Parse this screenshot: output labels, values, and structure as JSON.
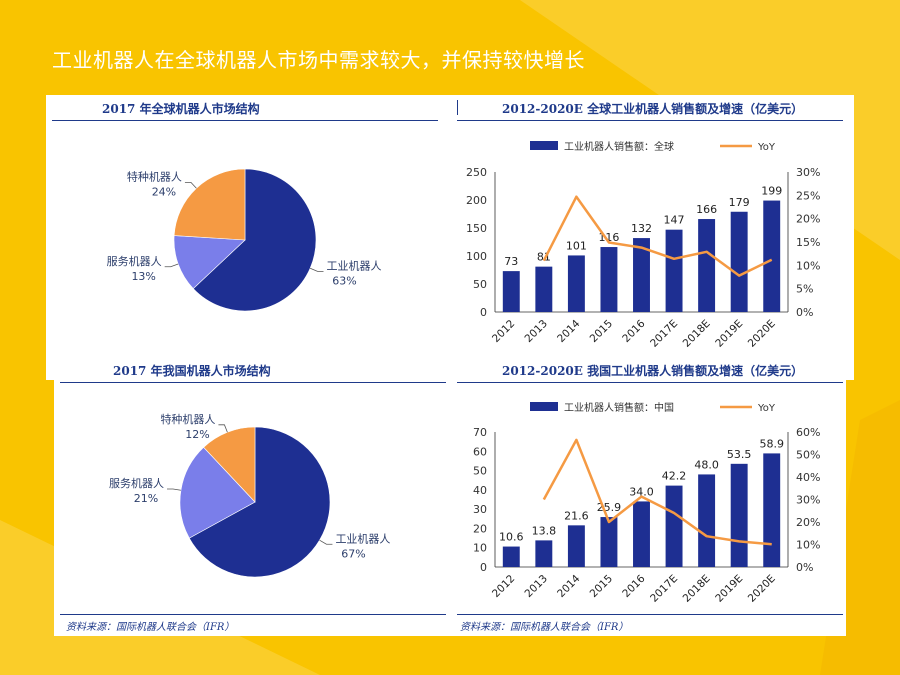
{
  "page": {
    "title": "工业机器人在全球机器人市场中需求较大，并保持较快增长",
    "source_left": "资料来源：国际机器人联合会（IFR）",
    "source_right": "资料来源：国际机器人联合会（IFR）"
  },
  "colors": {
    "background": "#F9C400",
    "navy": "#1E2F92",
    "periwinkle": "#7A7EEA",
    "orange": "#F59A43",
    "title_blue": "#1F3A8A"
  },
  "chart_data": [
    {
      "id": "global-structure",
      "type": "pie",
      "title": "2017 年全球机器人市场结构",
      "slices": [
        {
          "name": "工业机器人",
          "value": 63,
          "label": "63%",
          "color": "#1E2F92"
        },
        {
          "name": "服务机器人",
          "value": 13,
          "label": "13%",
          "color": "#7A7EEA"
        },
        {
          "name": "特种机器人",
          "value": 24,
          "label": "24%",
          "color": "#F59A43"
        }
      ]
    },
    {
      "id": "global-sales",
      "type": "bar",
      "title": "2012-2020E 全球工业机器人销售额及增速（亿美元）",
      "categories": [
        "2012",
        "2013",
        "2014",
        "2015",
        "2016",
        "2017E",
        "2018E",
        "2019E",
        "2020E"
      ],
      "series": [
        {
          "name": "工业机器人销售额：全球",
          "kind": "bar",
          "axis": "left",
          "values": [
            73,
            81,
            101,
            116,
            132,
            147,
            166,
            179,
            199
          ],
          "labels": [
            "73",
            "81",
            "101",
            "116",
            "132",
            "147",
            "166",
            "179",
            "199"
          ]
        },
        {
          "name": "YoY",
          "kind": "line",
          "axis": "right",
          "values": [
            null,
            11,
            24.7,
            14.9,
            13.8,
            11.4,
            12.9,
            7.8,
            11.2
          ]
        }
      ],
      "ylim": [
        0,
        250
      ],
      "yticks": [
        "0",
        "50",
        "100",
        "150",
        "200",
        "250"
      ],
      "y2lim": [
        0,
        30
      ],
      "y2ticks": [
        "0%",
        "5%",
        "10%",
        "15%",
        "20%",
        "25%",
        "30%"
      ],
      "legend": "top"
    },
    {
      "id": "china-structure",
      "type": "pie",
      "title": "2017 年我国机器人市场结构",
      "slices": [
        {
          "name": "工业机器人",
          "value": 67,
          "label": "67%",
          "color": "#1E2F92"
        },
        {
          "name": "服务机器人",
          "value": 21,
          "label": "21%",
          "color": "#7A7EEA"
        },
        {
          "name": "特种机器人",
          "value": 12,
          "label": "12%",
          "color": "#F59A43"
        }
      ]
    },
    {
      "id": "china-sales",
      "type": "bar",
      "title": "2012-2020E 我国工业机器人销售额及增速（亿美元）",
      "categories": [
        "2012",
        "2013",
        "2014",
        "2015",
        "2016",
        "2017E",
        "2018E",
        "2019E",
        "2020E"
      ],
      "series": [
        {
          "name": "工业机器人销售额：中国",
          "kind": "bar",
          "axis": "left",
          "values": [
            10.6,
            13.8,
            21.6,
            25.9,
            34.0,
            42.2,
            48.0,
            53.5,
            58.9
          ],
          "labels": [
            "10.6",
            "13.8",
            "21.6",
            "25.9",
            "34.0",
            "42.2",
            "48.0",
            "53.5",
            "58.9"
          ]
        },
        {
          "name": "YoY",
          "kind": "line",
          "axis": "right",
          "values": [
            null,
            30,
            56.5,
            20,
            31.3,
            24,
            13.7,
            11.4,
            10.1
          ]
        }
      ],
      "ylim": [
        0,
        70
      ],
      "yticks": [
        "0",
        "10",
        "20",
        "30",
        "40",
        "50",
        "60",
        "70"
      ],
      "y2lim": [
        0,
        60
      ],
      "y2ticks": [
        "0%",
        "10%",
        "20%",
        "30%",
        "40%",
        "50%",
        "60%"
      ],
      "legend": "top"
    }
  ]
}
